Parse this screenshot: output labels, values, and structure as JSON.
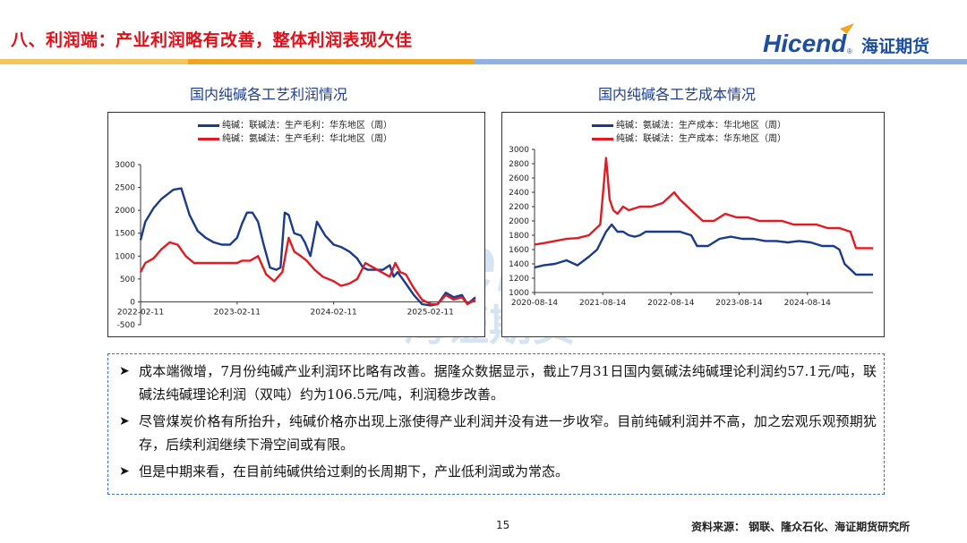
{
  "header": {
    "title": "八、利润端：产业利润略有改善，整体利润表现欠佳",
    "logo_text": "Hicend",
    "logo_cn": "海证期货",
    "logo_reg": "®"
  },
  "colors": {
    "title_red": "#e0101a",
    "navy": "#1a3a8a",
    "red": "#e01b23",
    "gold": "#f2a51f",
    "light_blue": "#4b86c8",
    "accent_blue": "#3b6fc4"
  },
  "watermark": {
    "text": "Hicend",
    "cn": "海证期货",
    "reg": "®"
  },
  "charts": [
    {
      "title": "国内纯碱各工艺利润情况",
      "legend": [
        "纯碱：联碱法：生产毛利：华东地区（周）",
        "纯碱：氨碱法：生产毛利：华北地区（周）"
      ],
      "y_ticks": [
        "3000",
        "2500",
        "2000",
        "1500",
        "1000",
        "500",
        "0",
        "-500"
      ],
      "x_ticks": [
        "2022-02-11",
        "2023-02-11",
        "2024-02-11",
        "2025-02-11"
      ]
    },
    {
      "title": "国内纯碱各工艺成本情况",
      "legend": [
        "纯碱：氨碱法：生产成本：华北地区（周）",
        "纯碱：联碱法：生产成本：华东地区（周）"
      ],
      "y_ticks": [
        "3000",
        "2800",
        "2600",
        "2400",
        "2200",
        "2000",
        "1800",
        "1600",
        "1400",
        "1200",
        "1000"
      ],
      "x_ticks": [
        "2020-08-14",
        "2021-08-14",
        "2022-08-14",
        "2023-08-14",
        "2024-08-14"
      ]
    }
  ],
  "chart_data": [
    {
      "type": "line",
      "title": "国内纯碱各工艺利润情况",
      "ylim": [
        -500,
        3000
      ],
      "xlim": [
        "2022-02-11",
        "2025-07-31"
      ],
      "x_tick_labels": [
        "2022-02-11",
        "2023-02-11",
        "2024-02-11",
        "2025-02-11"
      ],
      "series": [
        {
          "name": "纯碱：联碱法：生产毛利：华东地区（周）",
          "color": "#1a3a8a",
          "x": [
            "2022-02-11",
            "2022-03-01",
            "2022-04-01",
            "2022-05-01",
            "2022-06-15",
            "2022-07-15",
            "2022-08-15",
            "2022-09-15",
            "2022-10-15",
            "2022-11-15",
            "2022-12-15",
            "2023-01-15",
            "2023-02-11",
            "2023-03-01",
            "2023-03-20",
            "2023-04-10",
            "2023-05-01",
            "2023-05-20",
            "2023-06-15",
            "2023-07-10",
            "2023-07-25",
            "2023-08-10",
            "2023-08-25",
            "2023-09-15",
            "2023-10-10",
            "2023-10-25",
            "2023-11-15",
            "2023-12-10",
            "2024-01-10",
            "2024-02-11",
            "2024-03-10",
            "2024-04-10",
            "2024-05-10",
            "2024-06-01",
            "2024-06-20",
            "2024-07-15",
            "2024-08-15",
            "2024-09-10",
            "2024-09-25",
            "2024-10-10",
            "2024-11-10",
            "2024-12-10",
            "2025-01-10",
            "2025-02-11",
            "2025-03-10",
            "2025-04-10",
            "2025-05-10",
            "2025-06-10",
            "2025-07-01",
            "2025-07-31"
          ],
          "values": [
            1350,
            1750,
            2050,
            2250,
            2450,
            2480,
            1900,
            1550,
            1400,
            1300,
            1250,
            1250,
            1400,
            1700,
            1950,
            1950,
            1750,
            1300,
            750,
            700,
            750,
            1950,
            1900,
            1500,
            1450,
            1300,
            1000,
            1750,
            1450,
            1250,
            1200,
            1100,
            950,
            750,
            700,
            700,
            700,
            800,
            550,
            650,
            400,
            150,
            -50,
            -80,
            -50,
            200,
            100,
            150,
            -50,
            100
          ]
        },
        {
          "name": "纯碱：氨碱法：生产毛利：华北地区（周）",
          "color": "#e01b23",
          "x": [
            "2022-02-11",
            "2022-03-01",
            "2022-04-01",
            "2022-05-01",
            "2022-06-01",
            "2022-07-01",
            "2022-08-01",
            "2022-09-01",
            "2022-10-01",
            "2022-11-01",
            "2022-12-01",
            "2023-01-01",
            "2023-02-11",
            "2023-03-01",
            "2023-04-01",
            "2023-05-01",
            "2023-06-01",
            "2023-07-01",
            "2023-08-01",
            "2023-08-25",
            "2023-09-15",
            "2023-10-10",
            "2023-11-01",
            "2023-12-01",
            "2024-01-01",
            "2024-02-11",
            "2024-03-10",
            "2024-04-10",
            "2024-05-10",
            "2024-06-10",
            "2024-07-10",
            "2024-08-10",
            "2024-09-10",
            "2024-10-01",
            "2024-10-20",
            "2024-11-10",
            "2024-12-10",
            "2025-01-10",
            "2025-02-11",
            "2025-03-10",
            "2025-04-10",
            "2025-05-10",
            "2025-06-10",
            "2025-07-01",
            "2025-07-31"
          ],
          "values": [
            650,
            850,
            950,
            1150,
            1300,
            1250,
            1000,
            850,
            850,
            850,
            850,
            850,
            850,
            900,
            900,
            1000,
            600,
            450,
            650,
            1400,
            1100,
            1000,
            900,
            700,
            550,
            450,
            350,
            400,
            500,
            850,
            750,
            650,
            550,
            850,
            650,
            600,
            300,
            50,
            -50,
            -50,
            150,
            50,
            100,
            -50,
            50
          ]
        }
      ]
    },
    {
      "type": "line",
      "title": "国内纯碱各工艺成本情况",
      "ylim": [
        1000,
        3000
      ],
      "xlim": [
        "2020-08-14",
        "2025-07-31"
      ],
      "x_tick_labels": [
        "2020-08-14",
        "2021-08-14",
        "2022-08-14",
        "2023-08-14",
        "2024-08-14"
      ],
      "series": [
        {
          "name": "纯碱：氨碱法：生产成本：华北地区（周）",
          "color": "#1a3a8a",
          "x": [
            "2020-08-14",
            "2020-10-01",
            "2020-12-01",
            "2021-02-01",
            "2021-04-01",
            "2021-06-01",
            "2021-07-15",
            "2021-09-01",
            "2021-10-01",
            "2021-11-01",
            "2021-12-01",
            "2022-01-01",
            "2022-02-01",
            "2022-03-01",
            "2022-04-01",
            "2022-06-01",
            "2022-08-01",
            "2022-10-01",
            "2022-12-01",
            "2023-01-01",
            "2023-03-01",
            "2023-05-01",
            "2023-07-01",
            "2023-09-01",
            "2023-11-01",
            "2024-01-01",
            "2024-03-01",
            "2024-05-01",
            "2024-07-01",
            "2024-09-01",
            "2024-11-01",
            "2025-01-01",
            "2025-02-01",
            "2025-03-01",
            "2025-05-01",
            "2025-07-31"
          ],
          "values": [
            1350,
            1380,
            1400,
            1450,
            1380,
            1500,
            1600,
            1850,
            1950,
            1850,
            1850,
            1800,
            1780,
            1800,
            1850,
            1850,
            1850,
            1850,
            1800,
            1650,
            1650,
            1750,
            1780,
            1750,
            1750,
            1720,
            1720,
            1700,
            1720,
            1700,
            1650,
            1650,
            1600,
            1400,
            1250,
            1250
          ]
        },
        {
          "name": "纯碱：联碱法：生产成本：华东地区（周）",
          "color": "#e01b23",
          "x": [
            "2020-08-14",
            "2020-10-01",
            "2020-12-01",
            "2021-02-01",
            "2021-04-01",
            "2021-06-01",
            "2021-08-01",
            "2021-09-01",
            "2021-09-20",
            "2021-10-10",
            "2021-11-01",
            "2021-12-01",
            "2022-01-01",
            "2022-03-01",
            "2022-05-01",
            "2022-07-01",
            "2022-09-01",
            "2022-10-01",
            "2022-12-01",
            "2023-02-01",
            "2023-04-01",
            "2023-06-01",
            "2023-08-01",
            "2023-10-01",
            "2023-12-01",
            "2024-02-01",
            "2024-04-01",
            "2024-06-01",
            "2024-08-01",
            "2024-10-01",
            "2024-12-01",
            "2025-02-01",
            "2025-04-01",
            "2025-05-01",
            "2025-07-31"
          ],
          "values": [
            1670,
            1690,
            1720,
            1750,
            1760,
            1800,
            1950,
            2880,
            2300,
            2150,
            2100,
            2200,
            2150,
            2200,
            2200,
            2250,
            2400,
            2300,
            2150,
            2000,
            2000,
            2100,
            2050,
            2050,
            2000,
            2000,
            2000,
            1950,
            1950,
            1950,
            1900,
            1900,
            1850,
            1620,
            1620
          ]
        }
      ]
    }
  ],
  "notes": [
    "成本端微增，7月份纯碱产业利润环比略有改善。据隆众数据显示，截止7月31日国内氨碱法纯碱理论利润约57.1元/吨，联碱法纯碱理论利润（双吨）约为106.5元/吨，利润稳步改善。",
    "尽管煤炭价格有所抬升，纯碱价格亦出现上涨使得产业利润并没有进一步收窄。目前纯碱利润并不高，加之宏观乐观预期犹存，后续利润继续下滑空间或有限。",
    "但是中期来看，在目前纯碱供给过剩的长周期下，产业低利润或为常态。"
  ],
  "footer": {
    "page_number": "15",
    "source": "资料来源：  钢联、隆众石化、海证期货研究所"
  }
}
